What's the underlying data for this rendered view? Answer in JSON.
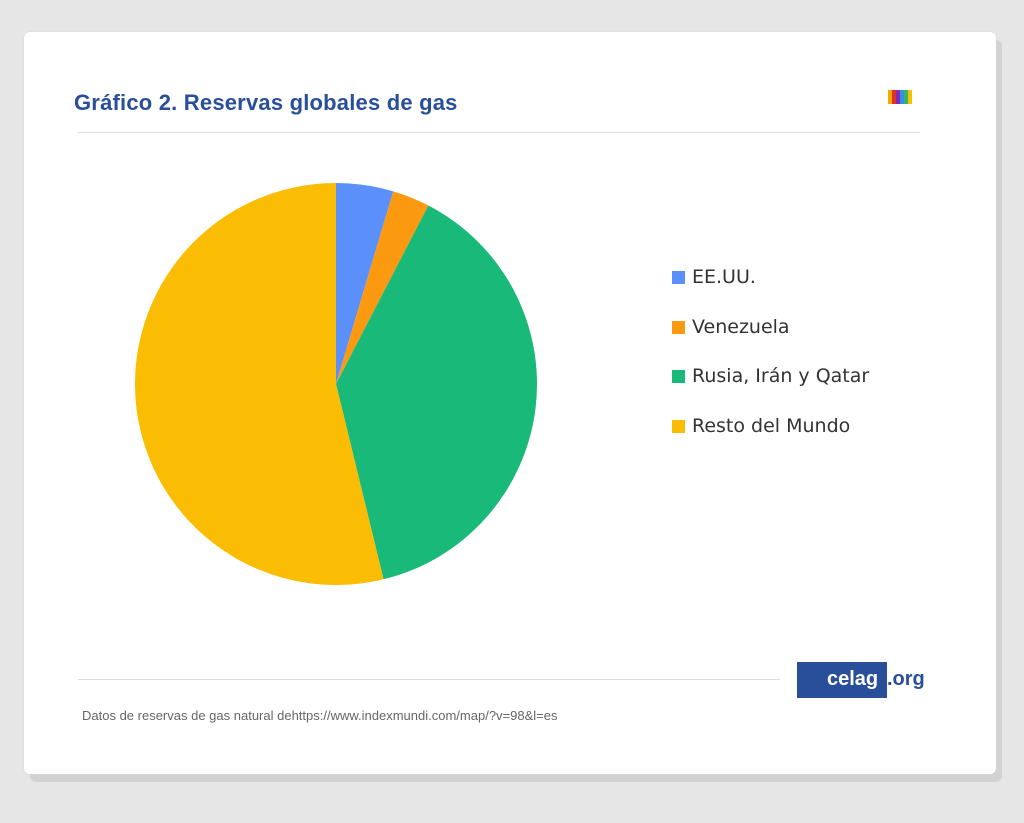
{
  "header": {
    "title": "Gráfico 2. Reservas globales de gas"
  },
  "brand": {
    "stripe_colors": [
      "#f2a900",
      "#e0322b",
      "#7b2fb5",
      "#3a8ee0",
      "#34b36a",
      "#f6c200"
    ],
    "logo_main": "celag",
    "logo_tld": ".org"
  },
  "footer": {
    "source": "Datos de reservas de gas natural dehttps://www.indexmundi.com/map/?v=98&l=es"
  },
  "chart_data": {
    "type": "pie",
    "title": "",
    "start_angle_deg": 0,
    "direction": "clockwise",
    "legend_position": "right",
    "series": [
      {
        "label": "EE.UU.",
        "value": 4.6,
        "color": "#5b8ff9"
      },
      {
        "label": "Venezuela",
        "value": 3.0,
        "color": "#fb9a10"
      },
      {
        "label": "Rusia, Irán y Qatar",
        "value": 38.6,
        "color": "#19b97a"
      },
      {
        "label": "Resto del Mundo",
        "value": 53.8,
        "color": "#fbbc04"
      }
    ]
  }
}
